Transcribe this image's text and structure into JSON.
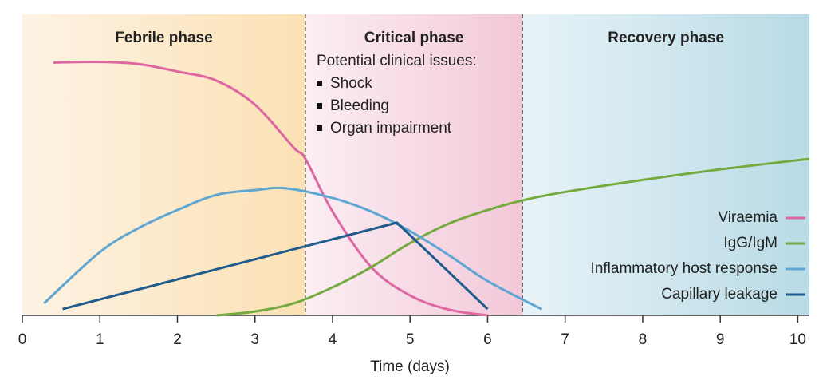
{
  "chart_data": {
    "type": "line",
    "xlabel": "Time (days)",
    "xlim": [
      0,
      10.15
    ],
    "xticks": [
      0,
      1,
      2,
      3,
      4,
      5,
      6,
      7,
      8,
      9,
      10
    ],
    "ylim": [
      0,
      100
    ],
    "phases": [
      {
        "name": "Febrile phase",
        "start": 0,
        "end": 3.65,
        "colors": [
          "#fdf3e4",
          "#fbe1b4"
        ]
      },
      {
        "name": "Critical phase",
        "start": 3.65,
        "end": 6.45,
        "colors": [
          "#fbeef3",
          "#f3c8d9"
        ]
      },
      {
        "name": "Recovery phase",
        "start": 6.45,
        "end": 10.15,
        "colors": [
          "#e8f3f7",
          "#b8dbe6"
        ]
      }
    ],
    "annotation": {
      "title": "Potential clinical issues:",
      "items": [
        "Shock",
        "Bleeding",
        "Organ impairment"
      ]
    },
    "series": [
      {
        "name": "Viraemia",
        "color": "#de67a2",
        "smooth": true,
        "x": [
          0.4,
          1,
          1.5,
          2,
          2.5,
          3,
          3.5,
          3.65,
          4,
          4.5,
          5,
          5.5,
          6
        ],
        "values": [
          84,
          84.2,
          83.5,
          81,
          78,
          70,
          55.7,
          52,
          34.5,
          16,
          6.6,
          1.9,
          0
        ]
      },
      {
        "name": "IgG/IgM",
        "color": "#74aa3e",
        "smooth": true,
        "x": [
          2.5,
          3,
          3.5,
          4,
          4.5,
          5,
          5.5,
          6,
          6.5,
          7,
          8,
          9,
          10.15
        ],
        "values": [
          0,
          1.3,
          4,
          9.3,
          16,
          24,
          30.5,
          35,
          38.5,
          41,
          45,
          48.5,
          52
        ]
      },
      {
        "name": "Inflammatory host response",
        "color": "#5fa6d3",
        "smooth": true,
        "x": [
          0.28,
          1,
          1.5,
          2,
          2.5,
          3,
          3.4,
          4,
          4.5,
          5,
          5.5,
          6,
          6.7
        ],
        "values": [
          4,
          21,
          29,
          35,
          40,
          41.6,
          42.2,
          39,
          34.5,
          28,
          20,
          11.4,
          2
        ]
      },
      {
        "name": "Capillary leakage",
        "color": "#1f5b8c",
        "smooth": false,
        "x": [
          0.52,
          4.83,
          6
        ],
        "values": [
          2.1,
          30.8,
          2.1
        ]
      }
    ]
  }
}
